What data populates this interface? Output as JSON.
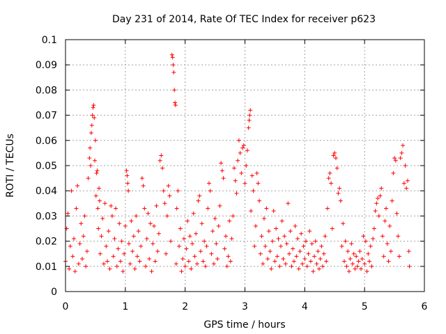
{
  "chart_data": {
    "type": "scatter",
    "title": "Day 231 of 2014, Rate Of TEC Index for receiver p623",
    "xlabel": "GPS time / hours",
    "ylabel": "ROTI / TECUs",
    "xlim": [
      0,
      6
    ],
    "ylim": [
      0,
      0.1
    ],
    "xticks": [
      "0",
      "1",
      "2",
      "3",
      "4",
      "5",
      "6"
    ],
    "yticks": [
      "0",
      "0.01",
      "0.02",
      "0.03",
      "0.04",
      "0.05",
      "0.06",
      "0.07",
      "0.08",
      "0.09",
      "0.1"
    ],
    "grid": true,
    "marker": "+",
    "color": "#ff0000",
    "series": [
      {
        "name": "ROTI",
        "points": [
          [
            0.0,
            0.012
          ],
          [
            0.02,
            0.025
          ],
          [
            0.04,
            0.031
          ],
          [
            0.06,
            0.009
          ],
          [
            0.08,
            0.018
          ],
          [
            0.1,
            0.04
          ],
          [
            0.12,
            0.014
          ],
          [
            0.14,
            0.021
          ],
          [
            0.16,
            0.008
          ],
          [
            0.18,
            0.033
          ],
          [
            0.2,
            0.042
          ],
          [
            0.22,
            0.011
          ],
          [
            0.24,
            0.019
          ],
          [
            0.26,
            0.027
          ],
          [
            0.28,
            0.013
          ],
          [
            0.3,
            0.022
          ],
          [
            0.32,
            0.03
          ],
          [
            0.34,
            0.01
          ],
          [
            0.36,
            0.016
          ],
          [
            0.38,
            0.045
          ],
          [
            0.4,
            0.053
          ],
          [
            0.41,
            0.057
          ],
          [
            0.42,
            0.05
          ],
          [
            0.43,
            0.063
          ],
          [
            0.44,
            0.066
          ],
          [
            0.45,
            0.07
          ],
          [
            0.46,
            0.073
          ],
          [
            0.47,
            0.074
          ],
          [
            0.48,
            0.069
          ],
          [
            0.49,
            0.052
          ],
          [
            0.5,
            0.06
          ],
          [
            0.51,
            0.038
          ],
          [
            0.52,
            0.047
          ],
          [
            0.53,
            0.048
          ],
          [
            0.54,
            0.033
          ],
          [
            0.55,
            0.025
          ],
          [
            0.56,
            0.041
          ],
          [
            0.57,
            0.036
          ],
          [
            0.58,
            0.015
          ],
          [
            0.6,
            0.022
          ],
          [
            0.62,
            0.029
          ],
          [
            0.64,
            0.011
          ],
          [
            0.66,
            0.035
          ],
          [
            0.68,
            0.018
          ],
          [
            0.7,
            0.012
          ],
          [
            0.72,
            0.024
          ],
          [
            0.74,
            0.009
          ],
          [
            0.76,
            0.034
          ],
          [
            0.78,
            0.03
          ],
          [
            0.8,
            0.014
          ],
          [
            0.82,
            0.021
          ],
          [
            0.84,
            0.033
          ],
          [
            0.86,
            0.01
          ],
          [
            0.88,
            0.017
          ],
          [
            0.9,
            0.027
          ],
          [
            0.92,
            0.012
          ],
          [
            0.94,
            0.02
          ],
          [
            0.96,
            0.008
          ],
          [
            0.98,
            0.015
          ],
          [
            1.0,
            0.026
          ],
          [
            1.02,
            0.048
          ],
          [
            1.03,
            0.046
          ],
          [
            1.04,
            0.043
          ],
          [
            1.05,
            0.04
          ],
          [
            1.06,
            0.019
          ],
          [
            1.08,
            0.011
          ],
          [
            1.1,
            0.028
          ],
          [
            1.12,
            0.016
          ],
          [
            1.14,
            0.022
          ],
          [
            1.16,
            0.009
          ],
          [
            1.18,
            0.03
          ],
          [
            1.2,
            0.014
          ],
          [
            1.22,
            0.024
          ],
          [
            1.24,
            0.012
          ],
          [
            1.26,
            0.018
          ],
          [
            1.28,
            0.045
          ],
          [
            1.3,
            0.042
          ],
          [
            1.32,
            0.033
          ],
          [
            1.34,
            0.01
          ],
          [
            1.36,
            0.021
          ],
          [
            1.38,
            0.031
          ],
          [
            1.4,
            0.013
          ],
          [
            1.42,
            0.027
          ],
          [
            1.44,
            0.008
          ],
          [
            1.46,
            0.019
          ],
          [
            1.48,
            0.026
          ],
          [
            1.5,
            0.012
          ],
          [
            1.52,
            0.034
          ],
          [
            1.54,
            0.016
          ],
          [
            1.56,
            0.023
          ],
          [
            1.58,
            0.052
          ],
          [
            1.6,
            0.054
          ],
          [
            1.62,
            0.049
          ],
          [
            1.64,
            0.04
          ],
          [
            1.66,
            0.035
          ],
          [
            1.68,
            0.015
          ],
          [
            1.7,
            0.03
          ],
          [
            1.72,
            0.042
          ],
          [
            1.74,
            0.038
          ],
          [
            1.76,
            0.02
          ],
          [
            1.78,
            0.094
          ],
          [
            1.79,
            0.093
          ],
          [
            1.8,
            0.09
          ],
          [
            1.81,
            0.087
          ],
          [
            1.82,
            0.08
          ],
          [
            1.83,
            0.075
          ],
          [
            1.84,
            0.074
          ],
          [
            1.85,
            0.011
          ],
          [
            1.86,
            0.033
          ],
          [
            1.88,
            0.04
          ],
          [
            1.9,
            0.018
          ],
          [
            1.92,
            0.025
          ],
          [
            1.94,
            0.008
          ],
          [
            1.96,
            0.013
          ],
          [
            1.98,
            0.021
          ],
          [
            2.0,
            0.01
          ],
          [
            2.02,
            0.017
          ],
          [
            2.04,
            0.028
          ],
          [
            2.06,
            0.012
          ],
          [
            2.08,
            0.022
          ],
          [
            2.1,
            0.009
          ],
          [
            2.12,
            0.019
          ],
          [
            2.14,
            0.031
          ],
          [
            2.16,
            0.014
          ],
          [
            2.18,
            0.023
          ],
          [
            2.2,
            0.011
          ],
          [
            2.22,
            0.036
          ],
          [
            2.24,
            0.038
          ],
          [
            2.26,
            0.016
          ],
          [
            2.28,
            0.027
          ],
          [
            2.3,
            0.012
          ],
          [
            2.32,
            0.02
          ],
          [
            2.34,
            0.01
          ],
          [
            2.36,
            0.018
          ],
          [
            2.38,
            0.033
          ],
          [
            2.4,
            0.043
          ],
          [
            2.42,
            0.04
          ],
          [
            2.44,
            0.015
          ],
          [
            2.46,
            0.024
          ],
          [
            2.48,
            0.011
          ],
          [
            2.5,
            0.029
          ],
          [
            2.52,
            0.019
          ],
          [
            2.54,
            0.013
          ],
          [
            2.56,
            0.026
          ],
          [
            2.58,
            0.034
          ],
          [
            2.6,
            0.051
          ],
          [
            2.62,
            0.048
          ],
          [
            2.64,
            0.045
          ],
          [
            2.66,
            0.017
          ],
          [
            2.68,
            0.022
          ],
          [
            2.7,
            0.01
          ],
          [
            2.72,
            0.014
          ],
          [
            2.74,
            0.028
          ],
          [
            2.76,
            0.012
          ],
          [
            2.78,
            0.021
          ],
          [
            2.8,
            0.03
          ],
          [
            2.82,
            0.049
          ],
          [
            2.84,
            0.044
          ],
          [
            2.86,
            0.039
          ],
          [
            2.88,
            0.052
          ],
          [
            2.9,
            0.06
          ],
          [
            2.92,
            0.055
          ],
          [
            2.94,
            0.047
          ],
          [
            2.96,
            0.057
          ],
          [
            2.98,
            0.058
          ],
          [
            3.0,
            0.043
          ],
          [
            3.02,
            0.05
          ],
          [
            3.04,
            0.056
          ],
          [
            3.06,
            0.065
          ],
          [
            3.07,
            0.068
          ],
          [
            3.08,
            0.07
          ],
          [
            3.09,
            0.072
          ],
          [
            3.1,
            0.032
          ],
          [
            3.12,
            0.046
          ],
          [
            3.14,
            0.04
          ],
          [
            3.16,
            0.018
          ],
          [
            3.18,
            0.026
          ],
          [
            3.2,
            0.047
          ],
          [
            3.22,
            0.043
          ],
          [
            3.24,
            0.036
          ],
          [
            3.26,
            0.015
          ],
          [
            3.28,
            0.022
          ],
          [
            3.3,
            0.011
          ],
          [
            3.32,
            0.029
          ],
          [
            3.34,
            0.018
          ],
          [
            3.36,
            0.033
          ],
          [
            3.38,
            0.013
          ],
          [
            3.4,
            0.024
          ],
          [
            3.42,
            0.016
          ],
          [
            3.44,
            0.009
          ],
          [
            3.46,
            0.02
          ],
          [
            3.48,
            0.032
          ],
          [
            3.5,
            0.012
          ],
          [
            3.52,
            0.025
          ],
          [
            3.54,
            0.014
          ],
          [
            3.56,
            0.021
          ],
          [
            3.58,
            0.01
          ],
          [
            3.6,
            0.018
          ],
          [
            3.62,
            0.028
          ],
          [
            3.64,
            0.013
          ],
          [
            3.66,
            0.022
          ],
          [
            3.68,
            0.011
          ],
          [
            3.7,
            0.019
          ],
          [
            3.72,
            0.035
          ],
          [
            3.74,
            0.015
          ],
          [
            3.76,
            0.024
          ],
          [
            3.78,
            0.01
          ],
          [
            3.8,
            0.017
          ],
          [
            3.82,
            0.012
          ],
          [
            3.84,
            0.026
          ],
          [
            3.86,
            0.014
          ],
          [
            3.88,
            0.021
          ],
          [
            3.9,
            0.009
          ],
          [
            3.92,
            0.016
          ],
          [
            3.94,
            0.023
          ],
          [
            3.96,
            0.011
          ],
          [
            3.98,
            0.018
          ],
          [
            4.0,
            0.013
          ],
          [
            4.02,
            0.02
          ],
          [
            4.04,
            0.01
          ],
          [
            4.06,
            0.015
          ],
          [
            4.08,
            0.024
          ],
          [
            4.1,
            0.012
          ],
          [
            4.12,
            0.019
          ],
          [
            4.14,
            0.008
          ],
          [
            4.16,
            0.014
          ],
          [
            4.18,
            0.02
          ],
          [
            4.2,
            0.011
          ],
          [
            4.22,
            0.016
          ],
          [
            4.24,
            0.009
          ],
          [
            4.26,
            0.013
          ],
          [
            4.28,
            0.018
          ],
          [
            4.3,
            0.01
          ],
          [
            4.32,
            0.015
          ],
          [
            4.34,
            0.022
          ],
          [
            4.36,
            0.012
          ],
          [
            4.38,
            0.033
          ],
          [
            4.4,
            0.045
          ],
          [
            4.42,
            0.047
          ],
          [
            4.44,
            0.043
          ],
          [
            4.46,
            0.025
          ],
          [
            4.48,
            0.054
          ],
          [
            4.5,
            0.055
          ],
          [
            4.52,
            0.053
          ],
          [
            4.54,
            0.049
          ],
          [
            4.56,
            0.039
          ],
          [
            4.58,
            0.041
          ],
          [
            4.6,
            0.036
          ],
          [
            4.62,
            0.018
          ],
          [
            4.64,
            0.027
          ],
          [
            4.66,
            0.012
          ],
          [
            4.68,
            0.02
          ],
          [
            4.7,
            0.01
          ],
          [
            4.72,
            0.016
          ],
          [
            4.74,
            0.008
          ],
          [
            4.76,
            0.013
          ],
          [
            4.78,
            0.019
          ],
          [
            4.8,
            0.011
          ],
          [
            4.82,
            0.015
          ],
          [
            4.84,
            0.009
          ],
          [
            4.86,
            0.014
          ],
          [
            4.88,
            0.01
          ],
          [
            4.9,
            0.012
          ],
          [
            4.92,
            0.016
          ],
          [
            4.94,
            0.009
          ],
          [
            4.96,
            0.013
          ],
          [
            4.98,
            0.022
          ],
          [
            5.0,
            0.011
          ],
          [
            5.02,
            0.02
          ],
          [
            5.04,
            0.008
          ],
          [
            5.06,
            0.015
          ],
          [
            5.08,
            0.012
          ],
          [
            5.1,
            0.018
          ],
          [
            5.12,
            0.01
          ],
          [
            5.14,
            0.021
          ],
          [
            5.16,
            0.025
          ],
          [
            5.18,
            0.032
          ],
          [
            5.2,
            0.035
          ],
          [
            5.22,
            0.037
          ],
          [
            5.24,
            0.03
          ],
          [
            5.26,
            0.038
          ],
          [
            5.28,
            0.041
          ],
          [
            5.3,
            0.022
          ],
          [
            5.32,
            0.014
          ],
          [
            5.34,
            0.028
          ],
          [
            5.36,
            0.033
          ],
          [
            5.38,
            0.019
          ],
          [
            5.4,
            0.012
          ],
          [
            5.42,
            0.026
          ],
          [
            5.44,
            0.016
          ],
          [
            5.46,
            0.036
          ],
          [
            5.48,
            0.047
          ],
          [
            5.5,
            0.053
          ],
          [
            5.52,
            0.052
          ],
          [
            5.54,
            0.031
          ],
          [
            5.56,
            0.022
          ],
          [
            5.58,
            0.014
          ],
          [
            5.6,
            0.053
          ],
          [
            5.62,
            0.055
          ],
          [
            5.64,
            0.058
          ],
          [
            5.66,
            0.043
          ],
          [
            5.68,
            0.05
          ],
          [
            5.7,
            0.041
          ],
          [
            5.72,
            0.044
          ],
          [
            5.74,
            0.016
          ],
          [
            5.75,
            0.01
          ]
        ]
      }
    ]
  }
}
